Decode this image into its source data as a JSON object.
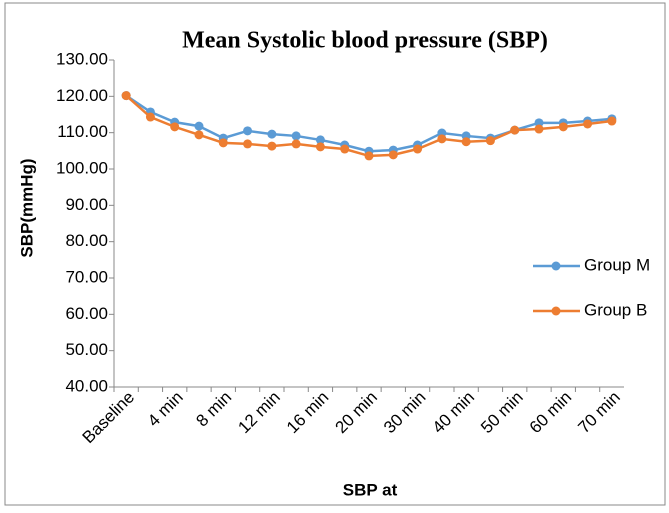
{
  "chart_data": {
    "type": "line",
    "title": "Mean Systolic blood pressure (SBP)",
    "x_label": "SBP at",
    "y_label": "SBP(mmHg)",
    "categories": [
      "Baseline",
      null,
      "4 min",
      null,
      "8 min",
      null,
      "12 min",
      null,
      "16 min",
      null,
      "20 min",
      null,
      "30 min",
      null,
      "40 min",
      null,
      "50 min",
      null,
      "60 min",
      null,
      "70 min"
    ],
    "series": [
      {
        "name": "Group M",
        "color": "#5b9bd5",
        "values": [
          120.2,
          115.7,
          112.9,
          111.8,
          108.5,
          110.5,
          109.6,
          109.1,
          108.0,
          106.6,
          104.9,
          105.2,
          106.6,
          109.9,
          109.1,
          108.5,
          110.7,
          112.7,
          112.7,
          113.2,
          113.8
        ]
      },
      {
        "name": "Group B",
        "color": "#ed7d31",
        "values": [
          120.2,
          114.3,
          111.6,
          109.4,
          107.2,
          106.9,
          106.3,
          106.9,
          106.1,
          105.5,
          103.6,
          103.9,
          105.5,
          108.3,
          107.5,
          107.8,
          110.7,
          111.0,
          111.6,
          112.4,
          113.2
        ]
      }
    ],
    "ylim": [
      40,
      130
    ],
    "yticks": [
      {
        "value": 40,
        "label": "40.00"
      },
      {
        "value": 50,
        "label": "50.00"
      },
      {
        "value": 60,
        "label": "60.00"
      },
      {
        "value": 70,
        "label": "70.00"
      },
      {
        "value": 80,
        "label": "80.00"
      },
      {
        "value": 90,
        "label": "90.00"
      },
      {
        "value": 100,
        "label": "100.00"
      },
      {
        "value": 110,
        "label": "110.00"
      },
      {
        "value": 120,
        "label": "120.00"
      },
      {
        "value": 130,
        "label": "130.00"
      }
    ],
    "legend": "right"
  }
}
